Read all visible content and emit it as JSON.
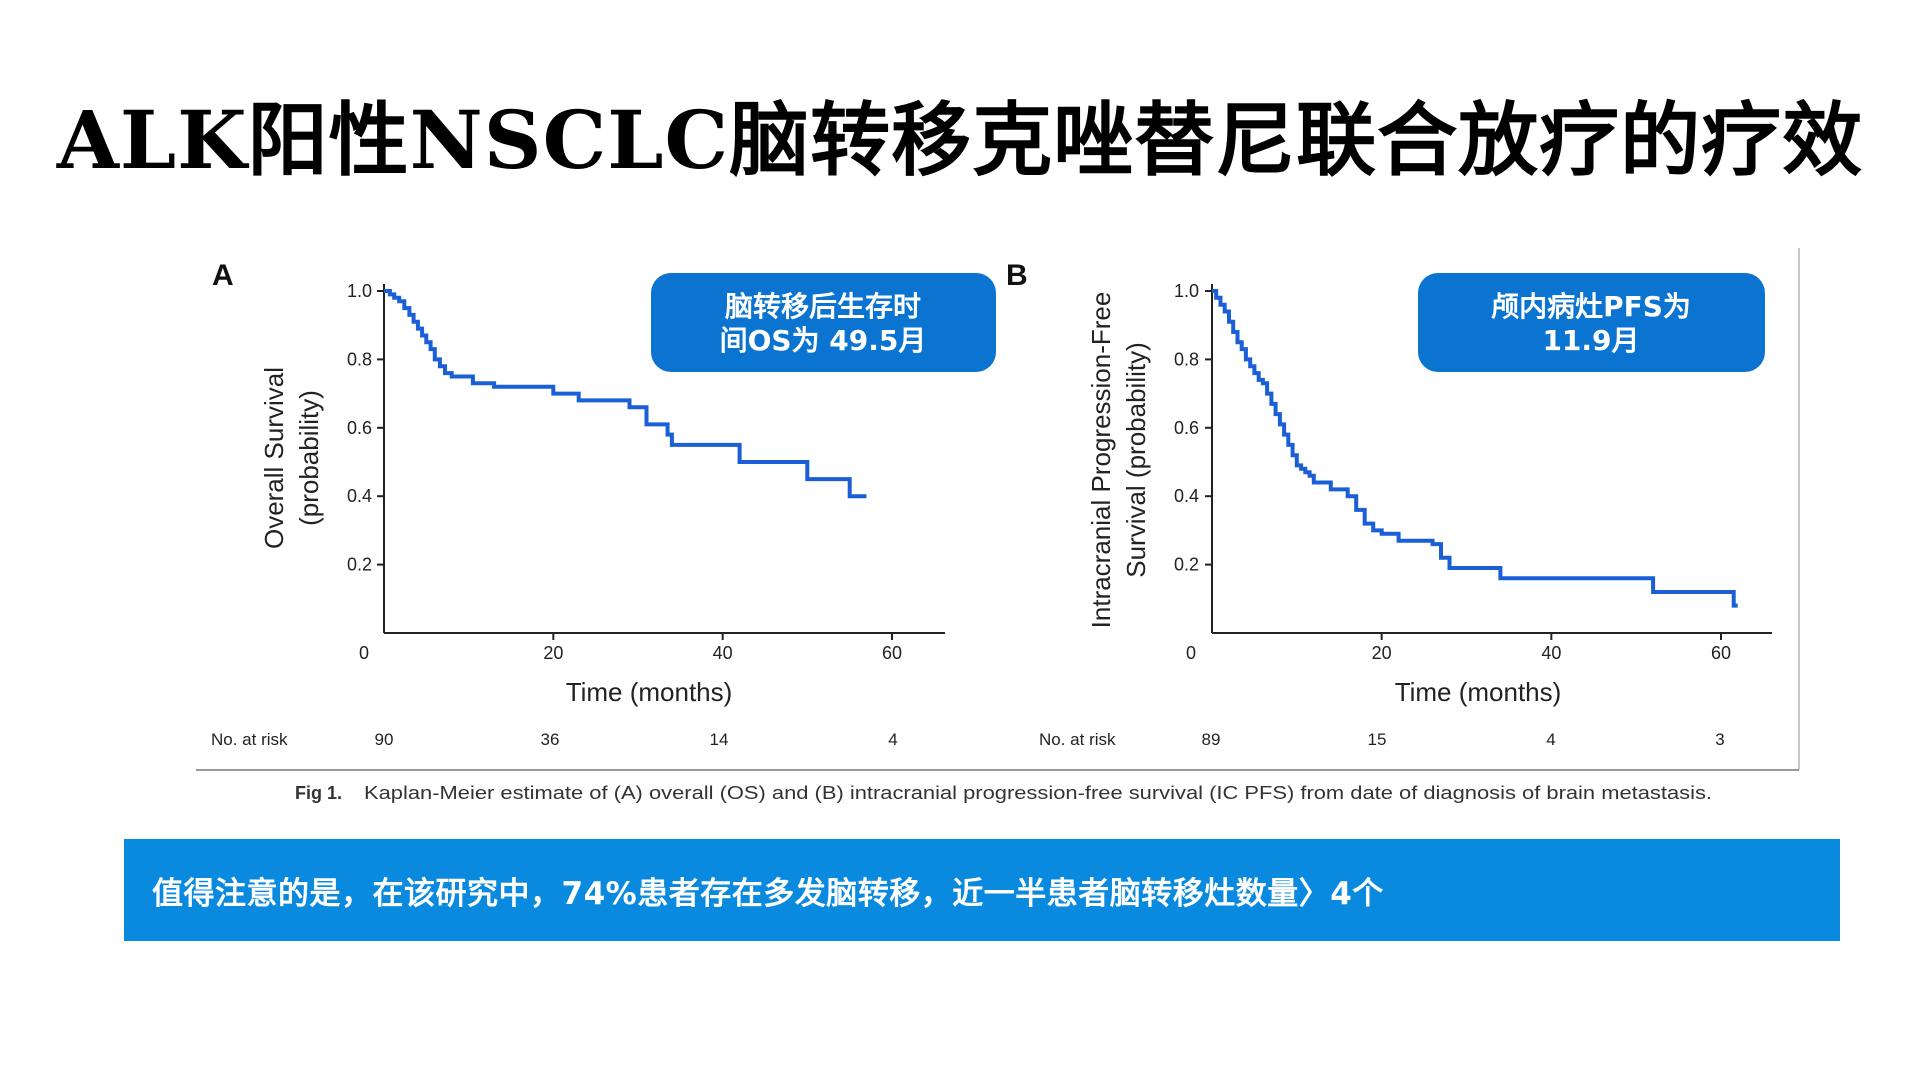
{
  "slide": {
    "title": "ALK阳性NSCLC脑转移克唑替尼联合放疗的疗效",
    "banner": "值得注意的是，在该研究中，74%患者存在多发脑转移，近一半患者脑转移灶数量〉4个",
    "caption": {
      "label": "Fig 1.",
      "text": "Kaplan-Meier estimate of (A) overall (OS) and (B) intracranial progression-free survival (IC PFS) from date of diagnosis of brain metastasis."
    }
  },
  "colors": {
    "curve": "#1a5fd6",
    "callout": "#0a74d0",
    "banner": "#0a8ade"
  },
  "chart_data": [
    {
      "type": "line",
      "panel": "A",
      "callout": [
        "脑转移后生存时",
        "间OS为 49.5月"
      ],
      "xlabel": "Time (months)",
      "ylabel": [
        "Overall Survival",
        "(probability)"
      ],
      "xlim": [
        0,
        66
      ],
      "ylim": [
        0,
        1.0
      ],
      "x_ticks": [
        "0",
        "20",
        "40",
        "60"
      ],
      "y_ticks": [
        "1.0",
        "0.8",
        "0.6",
        "0.4",
        "0.2"
      ],
      "risk": {
        "label": "No. at risk",
        "values": [
          "90",
          "36",
          "14",
          "4"
        ]
      },
      "step": true,
      "series": [
        {
          "x": [
            0,
            0.7,
            1.2,
            1.8,
            2.4,
            3.0,
            3.5,
            4.0,
            4.5,
            5.0,
            5.5,
            6.0,
            6.6,
            7.2,
            8.0,
            9.0,
            10.5,
            13,
            16,
            18,
            20,
            23,
            27,
            29,
            31,
            33.5,
            34,
            38,
            42,
            46,
            50,
            55,
            56.5
          ],
          "y": [
            1.0,
            0.99,
            0.98,
            0.97,
            0.95,
            0.93,
            0.91,
            0.89,
            0.87,
            0.85,
            0.83,
            0.8,
            0.78,
            0.76,
            0.75,
            0.75,
            0.73,
            0.72,
            0.72,
            0.72,
            0.7,
            0.68,
            0.68,
            0.66,
            0.61,
            0.58,
            0.55,
            0.55,
            0.5,
            0.5,
            0.45,
            0.4,
            0.4
          ]
        }
      ]
    },
    {
      "type": "line",
      "panel": "B",
      "callout": [
        "颅内病灶PFS为",
        "11.9月"
      ],
      "xlabel": "Time (months)",
      "ylabel": [
        "Intracranial Progression-Free",
        "Survival (probability)"
      ],
      "xlim": [
        0,
        66
      ],
      "ylim": [
        0,
        1.0
      ],
      "x_ticks": [
        "0",
        "20",
        "40",
        "60"
      ],
      "y_ticks": [
        "1.0",
        "0.8",
        "0.6",
        "0.4",
        "0.2"
      ],
      "risk": {
        "label": "No. at risk",
        "values": [
          "89",
          "15",
          "4",
          "3"
        ]
      },
      "step": true,
      "series": [
        {
          "x": [
            0,
            0.5,
            1,
            1.5,
            2,
            2.5,
            3,
            3.5,
            4,
            4.5,
            5,
            5.5,
            6,
            6.5,
            7,
            7.5,
            8,
            8.5,
            9,
            9.5,
            10,
            10.5,
            11,
            11.5,
            12,
            14,
            16,
            17,
            18,
            19,
            20,
            22,
            24,
            26,
            27,
            28,
            34,
            52,
            61.5
          ],
          "y": [
            1.0,
            0.98,
            0.96,
            0.94,
            0.91,
            0.88,
            0.85,
            0.83,
            0.8,
            0.78,
            0.76,
            0.74,
            0.73,
            0.7,
            0.67,
            0.64,
            0.61,
            0.58,
            0.55,
            0.52,
            0.49,
            0.48,
            0.47,
            0.46,
            0.44,
            0.42,
            0.4,
            0.36,
            0.32,
            0.3,
            0.29,
            0.27,
            0.27,
            0.26,
            0.22,
            0.19,
            0.16,
            0.12,
            0.08
          ]
        }
      ]
    }
  ]
}
